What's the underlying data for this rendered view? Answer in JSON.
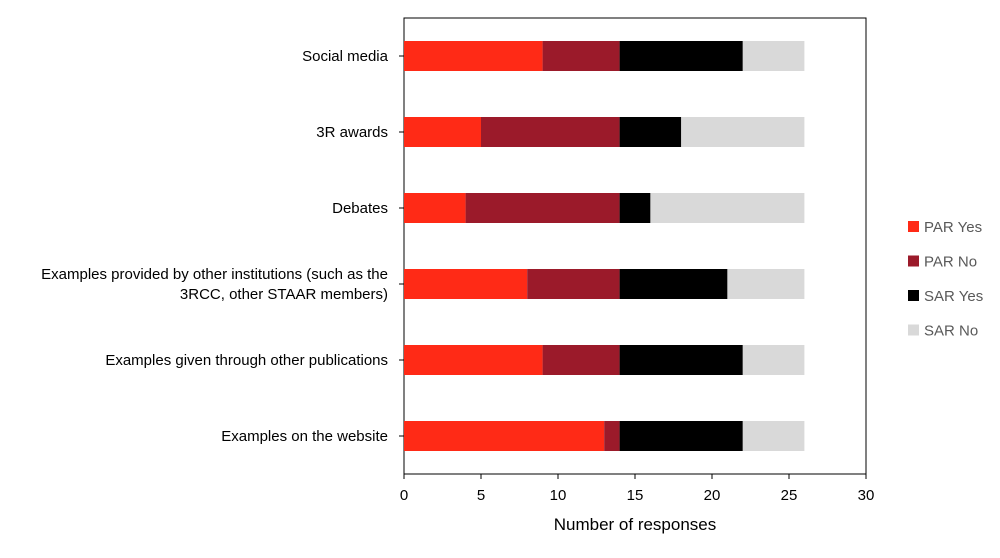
{
  "chart_data": {
    "type": "bar",
    "orientation": "horizontal",
    "stacked": true,
    "categories": [
      [
        "Social media"
      ],
      [
        "3R awards"
      ],
      [
        "Debates"
      ],
      [
        "Examples provided by other institutions (such as the",
        "3RCC, other STAAR members)"
      ],
      [
        "Examples given through other publications"
      ],
      [
        "Examples on the website"
      ]
    ],
    "series": [
      {
        "name": "PAR Yes",
        "color": "#ff2a16",
        "values": [
          9,
          5,
          4,
          8,
          9,
          13
        ]
      },
      {
        "name": "PAR No",
        "color": "#9b1a2a",
        "values": [
          5,
          9,
          10,
          6,
          5,
          1
        ]
      },
      {
        "name": "SAR Yes",
        "color": "#000000",
        "values": [
          8,
          4,
          2,
          7,
          8,
          8
        ]
      },
      {
        "name": "SAR No",
        "color": "#d9d9d9",
        "values": [
          4,
          8,
          10,
          5,
          4,
          4
        ]
      }
    ],
    "xlabel": "Number of responses",
    "ylabel": "",
    "title": "",
    "xlim": [
      0,
      30
    ],
    "xticks": [
      "0",
      "5",
      "10",
      "15",
      "20",
      "25",
      "30"
    ],
    "legend_position": "right",
    "grid": false
  }
}
